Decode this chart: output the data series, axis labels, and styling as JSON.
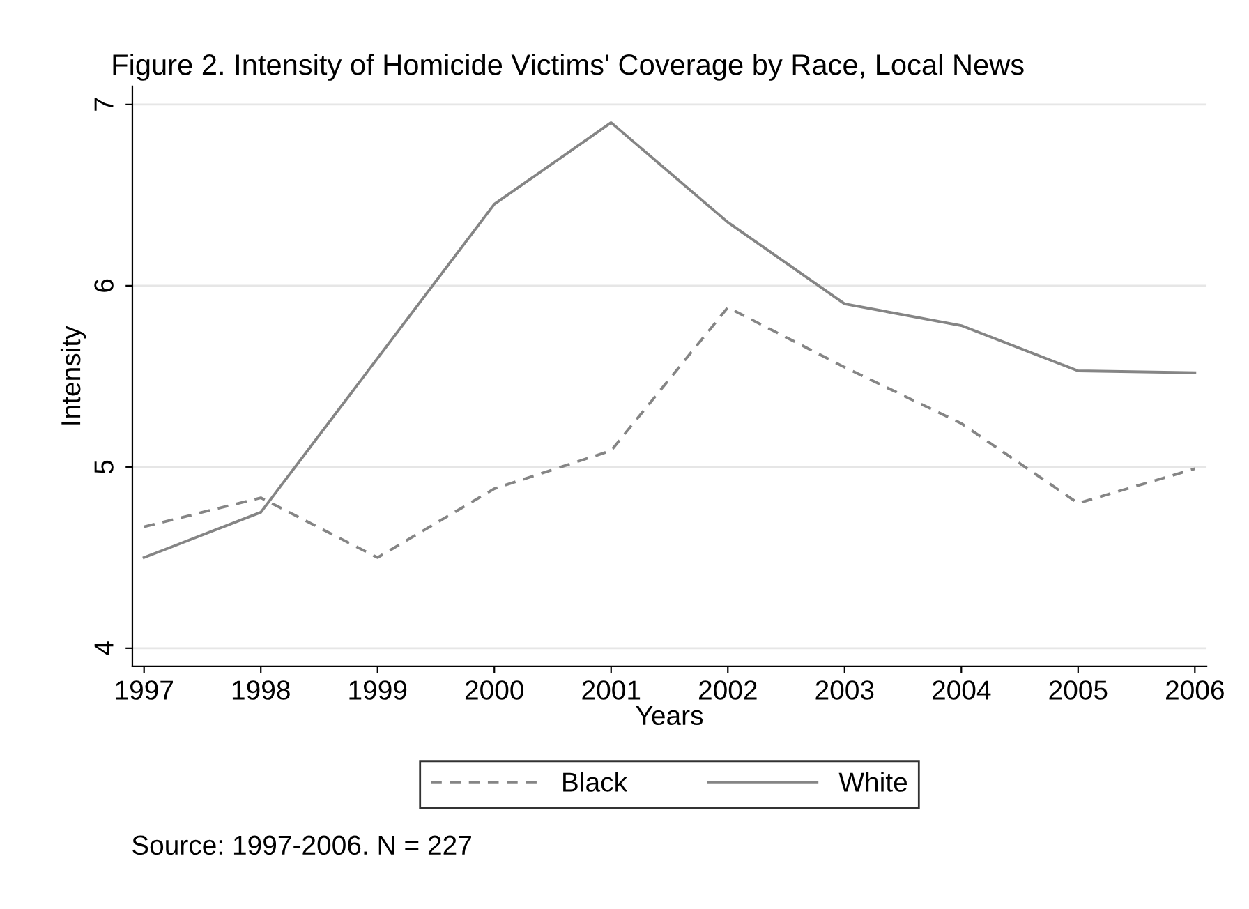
{
  "chart_data": {
    "type": "line",
    "title": "Figure 2. Intensity of Homicide Victims' Coverage by Race, Local News",
    "xlabel": "Years",
    "ylabel": "Intensity",
    "x": [
      1997,
      1998,
      1999,
      2000,
      2001,
      2002,
      2003,
      2004,
      2005,
      2006
    ],
    "series": [
      {
        "name": "Black",
        "color": "#858585",
        "line_style": "dashed",
        "values": [
          4.67,
          4.83,
          4.5,
          4.88,
          5.09,
          5.88,
          5.55,
          5.24,
          4.8,
          4.99
        ]
      },
      {
        "name": "White",
        "color": "#858585",
        "line_style": "solid",
        "values": [
          4.5,
          4.75,
          5.6,
          6.45,
          6.9,
          6.35,
          5.9,
          5.78,
          5.53,
          5.52
        ]
      }
    ],
    "xlim": [
      1996.9,
      2006.1
    ],
    "xticks": [
      1997,
      1998,
      1999,
      2000,
      2001,
      2002,
      2003,
      2004,
      2005,
      2006
    ],
    "ylim": [
      3.9,
      7.1
    ],
    "yticks": [
      4,
      5,
      6,
      7
    ],
    "grid": "y",
    "legend": "bottom",
    "marker": "none",
    "annotations": [
      "Source: 1997-2006. N = 227"
    ]
  }
}
